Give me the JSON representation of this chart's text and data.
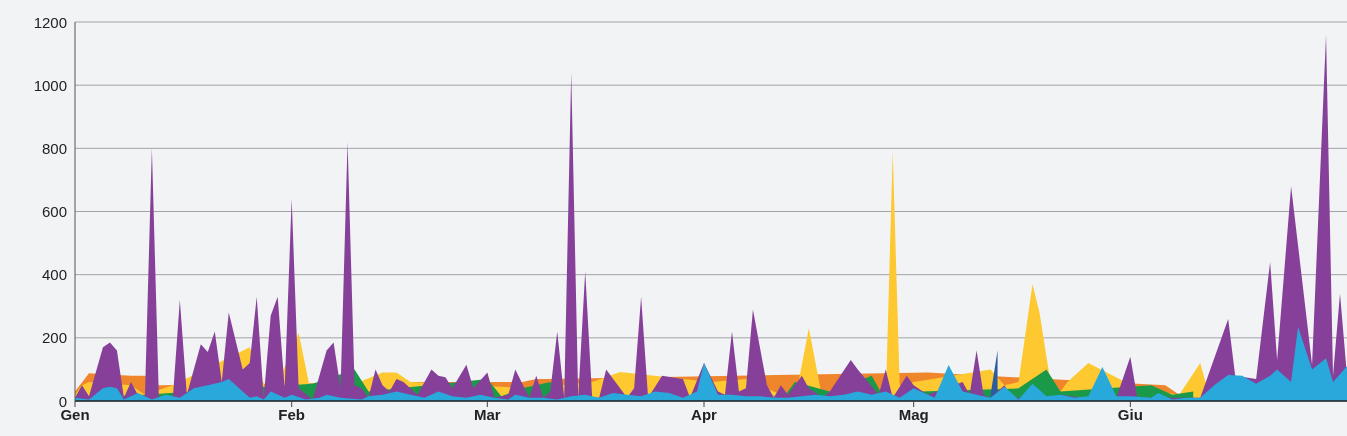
{
  "chart_data": {
    "type": "area",
    "xlim": [
      "--01-01",
      "--07-02"
    ],
    "xticks": [
      {
        "value": "--01-01",
        "label": "Gen"
      },
      {
        "value": "--02-01",
        "label": "Feb"
      },
      {
        "value": "--03-01",
        "label": "Mar"
      },
      {
        "value": "--04-01",
        "label": "Apr"
      },
      {
        "value": "--05-01",
        "label": "Mag"
      },
      {
        "value": "--06-01",
        "label": "Giu"
      }
    ],
    "ylim": [
      0,
      1200
    ],
    "yticks": [
      0,
      200,
      400,
      600,
      800,
      1000,
      1200
    ],
    "grid": "y",
    "series": [
      {
        "color": "#f0862b",
        "x": [
          "--01-01",
          "--01-03",
          "--01-09",
          "--01-11",
          "--01-13",
          "--02-18",
          "--02-25",
          "--03-06",
          "--03-08",
          "--03-10",
          "--05-03",
          "--06-06",
          "--06-08",
          "--07-02"
        ],
        "values": [
          30,
          88,
          80,
          80,
          50,
          60,
          60,
          60,
          70,
          70,
          90,
          50,
          20,
          10
        ]
      },
      {
        "color": "#fdc830",
        "x": [
          "--01-01",
          "--01-02",
          "--01-03",
          "--01-09",
          "--01-11",
          "--01-15",
          "--01-26",
          "--01-29",
          "--02-02",
          "--02-04",
          "--02-14",
          "--02-16",
          "--02-18",
          "--03-07",
          "--03-16",
          "--03-20",
          "--04-02",
          "--04-07",
          "--04-14",
          "--04-16",
          "--04-18",
          "--04-27",
          "--04-28",
          "--04-29",
          "--05-01",
          "--05-12",
          "--05-14",
          "--05-16",
          "--05-18",
          "--05-19",
          "--05-21",
          "--05-23",
          "--05-26",
          "--06-02",
          "--06-08",
          "--06-11",
          "--06-12",
          "--07-02"
        ],
        "values": [
          20,
          50,
          60,
          50,
          20,
          50,
          170,
          0,
          215,
          0,
          90,
          90,
          60,
          40,
          60,
          92,
          60,
          70,
          0,
          230,
          0,
          0,
          790,
          50,
          60,
          100,
          50,
          60,
          370,
          280,
          0,
          60,
          120,
          40,
          20,
          120,
          40,
          10
        ]
      },
      {
        "color": "#1a9a48",
        "x": [
          "--01-01",
          "--01-11",
          "--02-04",
          "--02-10",
          "--02-12",
          "--03-01",
          "--03-03",
          "--03-06",
          "--03-10",
          "--03-12",
          "--04-12",
          "--04-14",
          "--04-19",
          "--04-25",
          "--04-27",
          "--05-02",
          "--05-16",
          "--05-20",
          "--05-22",
          "--06-04",
          "--06-07",
          "--06-10"
        ],
        "values": [
          10,
          20,
          55,
          100,
          30,
          70,
          15,
          40,
          60,
          0,
          0,
          60,
          30,
          80,
          0,
          30,
          40,
          100,
          30,
          50,
          20,
          30
        ]
      },
      {
        "color": "#8cc071",
        "x": [
          "--04-10",
          "--04-11",
          "--04-12"
        ],
        "values": [
          0,
          20,
          0
        ]
      },
      {
        "color": "#2e5a9e",
        "x": [
          "--05-12",
          "--05-13"
        ],
        "values": [
          20,
          160
        ]
      },
      {
        "color": "#86409a",
        "x": [
          "--01-01",
          "--01-02",
          "--01-03",
          "--01-05",
          "--01-06",
          "--01-07",
          "--01-08",
          "--01-09",
          "--01-10",
          "--01-11",
          "--01-12",
          "--01-13",
          "--01-15",
          "--01-16",
          "--01-17",
          "--01-19",
          "--01-20",
          "--01-21",
          "--01-22",
          "--01-23",
          "--01-25",
          "--01-26",
          "--01-27",
          "--01-28",
          "--01-29",
          "--01-30",
          "--01-31",
          "--02-01",
          "--02-02",
          "--02-04",
          "--02-06",
          "--02-07",
          "--02-08",
          "--02-09",
          "--02-10",
          "--02-11",
          "--02-12",
          "--02-13",
          "--02-14",
          "--02-15",
          "--02-16",
          "--02-17",
          "--02-19",
          "--02-21",
          "--02-22",
          "--02-23",
          "--02-24",
          "--02-26",
          "--02-27",
          "--03-01",
          "--03-02",
          "--03-04",
          "--03-05",
          "--03-07",
          "--03-08",
          "--03-09",
          "--03-10",
          "--03-11",
          "--03-12",
          "--03-13",
          "--03-14",
          "--03-15",
          "--03-16",
          "--03-17",
          "--03-18",
          "--03-21",
          "--03-22",
          "--03-23",
          "--03-24",
          "--03-26",
          "--03-29",
          "--03-30",
          "--04-01",
          "--04-03",
          "--04-04",
          "--04-05",
          "--04-06",
          "--04-07",
          "--04-08",
          "--04-10",
          "--04-11",
          "--04-12",
          "--04-13",
          "--04-15",
          "--04-16",
          "--04-18",
          "--04-19",
          "--04-22",
          "--04-23",
          "--04-26",
          "--04-27",
          "--04-28",
          "--04-30",
          "--05-01",
          "--05-03",
          "--05-08",
          "--05-09",
          "--05-10",
          "--05-11",
          "--05-12",
          "--05-14",
          "--05-15",
          "--05-20",
          "--05-22",
          "--05-25",
          "--05-30",
          "--06-01",
          "--06-02",
          "--06-05",
          "--06-11",
          "--06-15",
          "--06-16",
          "--06-19",
          "--06-21",
          "--06-22",
          "--06-24",
          "--06-27",
          "--06-29",
          "--06-30",
          "--07-01",
          "--07-02"
        ],
        "values": [
          10,
          50,
          15,
          170,
          185,
          160,
          10,
          60,
          20,
          10,
          800,
          10,
          10,
          320,
          20,
          180,
          155,
          220,
          60,
          280,
          100,
          120,
          330,
          10,
          270,
          330,
          40,
          640,
          40,
          5,
          160,
          185,
          40,
          820,
          50,
          40,
          10,
          100,
          50,
          30,
          70,
          60,
          20,
          100,
          80,
          75,
          40,
          115,
          40,
          90,
          10,
          20,
          100,
          10,
          80,
          10,
          30,
          220,
          10,
          1040,
          10,
          410,
          10,
          10,
          100,
          10,
          40,
          330,
          10,
          80,
          70,
          10,
          120,
          30,
          20,
          220,
          30,
          40,
          290,
          50,
          10,
          50,
          20,
          80,
          40,
          10,
          30,
          130,
          100,
          20,
          100,
          10,
          80,
          50,
          20,
          60,
          20,
          160,
          20,
          10,
          50,
          10,
          10,
          20,
          10,
          10,
          140,
          10,
          10,
          10,
          260,
          80,
          70,
          440,
          130,
          680,
          115,
          1160,
          80,
          340,
          80
        ]
      },
      {
        "color": "#29a8dc",
        "x": [
          "--01-01",
          "--01-03",
          "--01-05",
          "--01-06",
          "--01-07",
          "--01-08",
          "--01-10",
          "--01-12",
          "--01-14",
          "--01-16",
          "--01-18",
          "--01-20",
          "--01-22",
          "--01-23",
          "--01-25",
          "--01-26",
          "--01-27",
          "--01-28",
          "--01-29",
          "--01-31",
          "--02-01",
          "--02-03",
          "--02-05",
          "--02-06",
          "--02-08",
          "--02-11",
          "--02-12",
          "--02-14",
          "--02-16",
          "--02-18",
          "--02-20",
          "--02-22",
          "--02-24",
          "--02-26",
          "--02-28",
          "--03-02",
          "--03-04",
          "--03-05",
          "--03-07",
          "--03-09",
          "--03-11",
          "--03-13",
          "--03-15",
          "--03-17",
          "--03-19",
          "--03-21",
          "--03-23",
          "--03-25",
          "--03-27",
          "--03-29",
          "--03-31",
          "--04-01",
          "--04-03",
          "--04-05",
          "--04-07",
          "--04-09",
          "--04-11",
          "--04-13",
          "--04-15",
          "--04-17",
          "--04-19",
          "--04-21",
          "--04-23",
          "--04-25",
          "--04-27",
          "--04-29",
          "--05-01",
          "--05-04",
          "--05-06",
          "--05-08",
          "--05-10",
          "--05-12",
          "--05-14",
          "--05-16",
          "--05-18",
          "--05-20",
          "--05-22",
          "--05-24",
          "--05-26",
          "--05-28",
          "--05-30",
          "--06-01",
          "--06-04",
          "--06-05",
          "--06-07",
          "--06-09",
          "--06-11",
          "--06-13",
          "--06-15",
          "--06-17",
          "--06-19",
          "--06-21",
          "--06-22",
          "--06-24",
          "--06-25",
          "--06-27",
          "--06-29",
          "--06-30",
          "--07-02"
        ],
        "values": [
          10,
          5,
          40,
          45,
          40,
          5,
          25,
          5,
          20,
          10,
          40,
          50,
          60,
          70,
          30,
          10,
          15,
          5,
          30,
          10,
          20,
          5,
          10,
          20,
          10,
          5,
          15,
          20,
          30,
          20,
          10,
          30,
          15,
          10,
          20,
          10,
          5,
          20,
          10,
          10,
          5,
          15,
          20,
          10,
          25,
          20,
          15,
          30,
          25,
          10,
          30,
          120,
          20,
          20,
          15,
          15,
          10,
          10,
          15,
          20,
          15,
          20,
          30,
          20,
          30,
          10,
          40,
          10,
          114,
          30,
          20,
          10,
          45,
          5,
          55,
          15,
          20,
          10,
          15,
          108,
          15,
          15,
          10,
          25,
          5,
          10,
          10,
          50,
          82,
          80,
          55,
          80,
          100,
          60,
          234,
          100,
          135,
          60,
          110
        ]
      }
    ]
  }
}
